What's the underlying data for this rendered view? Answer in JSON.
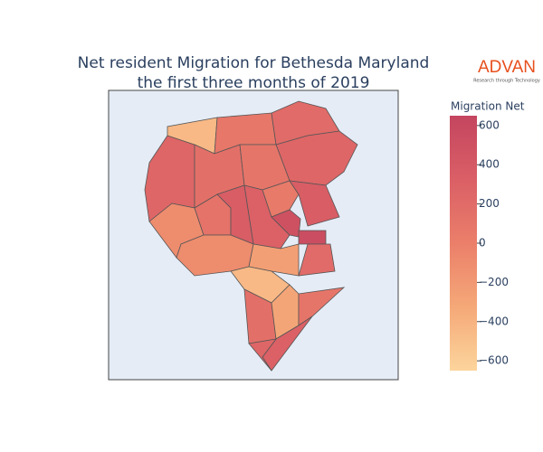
{
  "chart_data": {
    "type": "choropleth",
    "title": [
      "Net resident Migration for Bethesda Maryland",
      "the first three months of 2019"
    ],
    "logo": {
      "name": "ADVAN",
      "tagline": "Research through Technology",
      "color": "#e8501e"
    },
    "colorbar_title": "Migration Net",
    "zlim": [
      -650,
      650
    ],
    "colorscale": [
      "#fcd59c",
      "#f5a878",
      "#eb7f6a",
      "#da5f66",
      "#c4455f"
    ],
    "zticks": [
      {
        "value": 600,
        "label": "600"
      },
      {
        "value": 400,
        "label": "400"
      },
      {
        "value": 200,
        "label": "200"
      },
      {
        "value": 0,
        "label": "0"
      },
      {
        "value": -200,
        "label": "−200"
      },
      {
        "value": -400,
        "label": "−400"
      },
      {
        "value": -600,
        "label": "−600"
      }
    ],
    "values": [
      250,
      -450,
      80,
      200,
      250,
      150,
      100,
      -100,
      120,
      350,
      300,
      50,
      350,
      500,
      550,
      200,
      -100,
      -250,
      -450,
      150,
      -300,
      100,
      300,
      250
    ]
  }
}
